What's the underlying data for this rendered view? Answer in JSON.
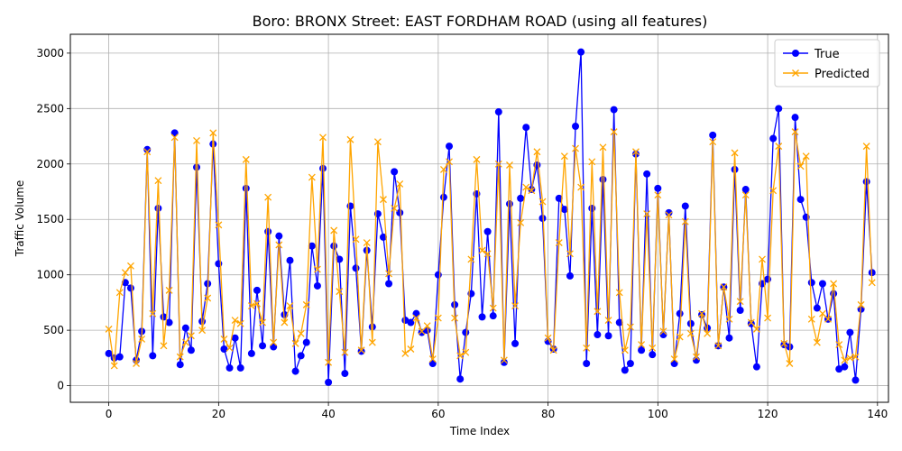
{
  "chart_data": {
    "type": "line",
    "title": "Boro: BRONX Street: EAST FORDHAM ROAD (using all features)",
    "xlabel": "Time Index",
    "ylabel": "Traffic Volume",
    "xlim": [
      -7,
      142
    ],
    "ylim": [
      -150,
      3170
    ],
    "xticks": [
      0,
      20,
      40,
      60,
      80,
      100,
      120,
      140
    ],
    "yticks": [
      0,
      500,
      1000,
      1500,
      2000,
      2500,
      3000
    ],
    "grid": true,
    "legend_position": "upper right",
    "series": [
      {
        "name": "True",
        "color": "#0000ff",
        "marker": "circle",
        "values": [
          290,
          250,
          260,
          930,
          880,
          230,
          490,
          2130,
          270,
          1600,
          620,
          570,
          2280,
          190,
          520,
          320,
          1970,
          580,
          920,
          2180,
          1100,
          330,
          160,
          430,
          160,
          1780,
          290,
          860,
          360,
          1390,
          350,
          1350,
          640,
          1130,
          130,
          270,
          390,
          1260,
          900,
          1960,
          30,
          1260,
          1140,
          110,
          1620,
          1060,
          310,
          1220,
          530,
          1550,
          1340,
          920,
          1930,
          1560,
          590,
          570,
          650,
          480,
          500,
          200,
          1000,
          1700,
          2160,
          730,
          60,
          480,
          830,
          1730,
          620,
          1390,
          630,
          2470,
          210,
          1640,
          380,
          1690,
          2330,
          1770,
          1990,
          1510,
          400,
          330,
          1690,
          1590,
          990,
          2340,
          3010,
          200,
          1600,
          460,
          1860,
          450,
          2490,
          570,
          140,
          200,
          2090,
          320,
          1910,
          280,
          1780,
          460,
          1560,
          200,
          650,
          1620,
          560,
          230,
          640,
          520,
          2260,
          360,
          890,
          430,
          1950,
          680,
          1770,
          560,
          170,
          920,
          960,
          2230,
          2500,
          370,
          350,
          2420,
          1680,
          1520,
          930,
          700,
          920,
          600,
          830,
          150,
          170,
          480,
          50,
          690,
          1840,
          1020
        ]
      },
      {
        "name": "Predicted",
        "color": "#ffa500",
        "marker": "x",
        "values": [
          510,
          180,
          840,
          1020,
          1080,
          200,
          420,
          2110,
          650,
          1850,
          360,
          860,
          2240,
          260,
          390,
          450,
          2210,
          500,
          790,
          2280,
          1450,
          420,
          340,
          590,
          560,
          2040,
          720,
          740,
          570,
          1700,
          390,
          1270,
          570,
          720,
          380,
          470,
          730,
          1880,
          1050,
          2240,
          210,
          1400,
          850,
          300,
          2220,
          1320,
          320,
          1290,
          390,
          2200,
          1680,
          1010,
          1600,
          1820,
          290,
          330,
          610,
          490,
          540,
          240,
          610,
          1950,
          2020,
          610,
          270,
          300,
          1140,
          2040,
          1220,
          1190,
          700,
          2000,
          230,
          1990,
          720,
          1470,
          1790,
          1760,
          2110,
          1660,
          430,
          320,
          1290,
          2070,
          1190,
          2140,
          1790,
          340,
          2020,
          670,
          2150,
          590,
          2290,
          840,
          320,
          530,
          2110,
          370,
          1550,
          340,
          1720,
          490,
          1540,
          240,
          440,
          1480,
          470,
          260,
          650,
          470,
          2200,
          360,
          890,
          600,
          2100,
          760,
          1720,
          570,
          510,
          1140,
          610,
          1760,
          2160,
          380,
          200,
          2290,
          1980,
          2070,
          600,
          390,
          650,
          600,
          920,
          370,
          230,
          250,
          260,
          730,
          2160,
          930
        ]
      }
    ]
  }
}
